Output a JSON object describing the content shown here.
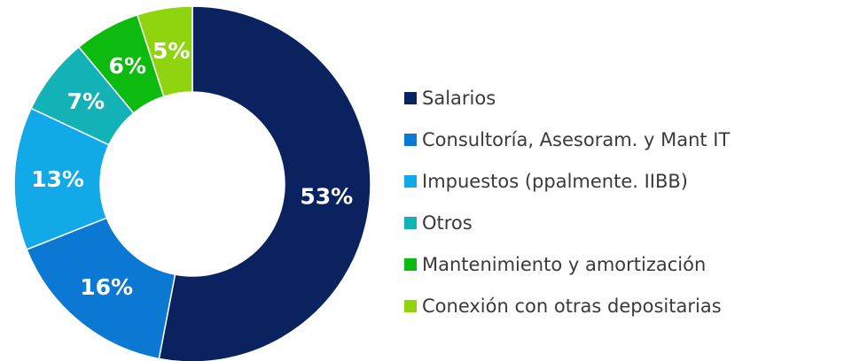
{
  "chart_data": {
    "type": "donut",
    "categories": [
      "Salarios",
      "Consultoría, Asesoram. y Mant IT",
      "Impuestos (ppalmente. IIBB)",
      "Otros",
      "Mantenimiento y amortización",
      "Conexión con otras depositarias"
    ],
    "values": [
      53,
      16,
      13,
      7,
      6,
      5
    ],
    "value_labels": [
      "53%",
      "16%",
      "13%",
      "7%",
      "6%",
      "5%"
    ],
    "colors": [
      "#0b2261",
      "#0b78d3",
      "#12a9e9",
      "#12b2b6",
      "#0cbb0e",
      "#8fd40f"
    ],
    "legend": "right"
  }
}
